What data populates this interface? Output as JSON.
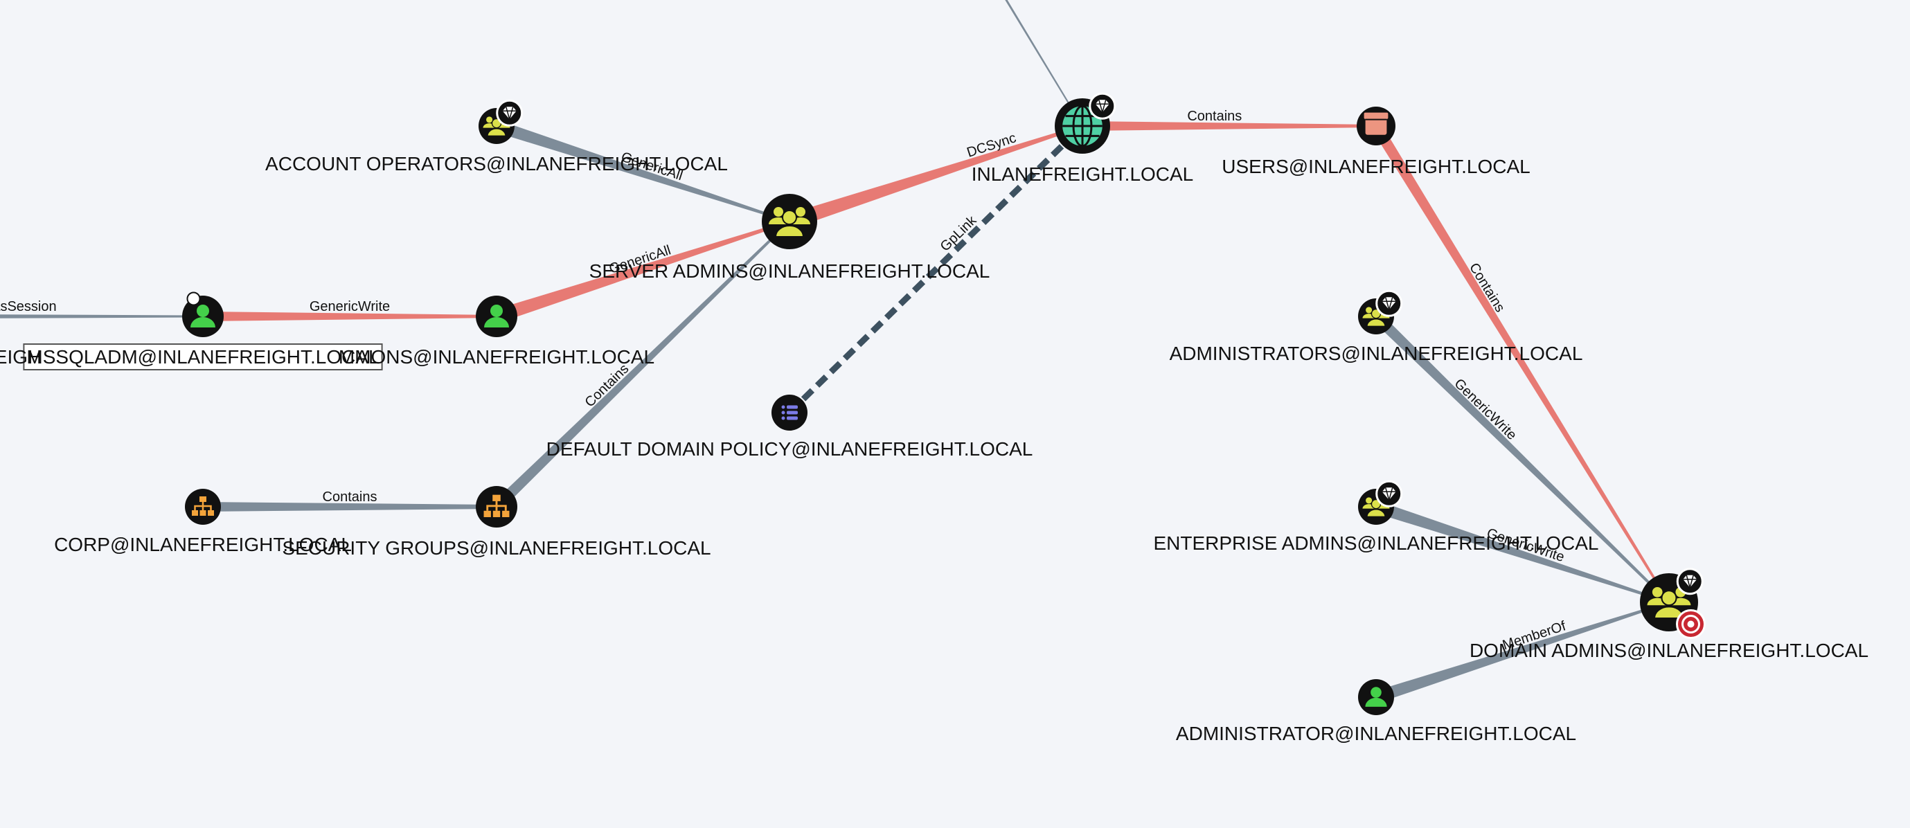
{
  "colors": {
    "background": "#f3f5f9",
    "edge_default": "#7e8c99",
    "edge_highlight": "#e77a74",
    "edge_gplink": "#3d5160",
    "node_ring": "#111111",
    "group_fill": "#dbe04a",
    "user_fill": "#44d04a",
    "domain_fill": "#4fd0a4",
    "ou_fill": "#f4a43b",
    "container_fill": "#ec9580",
    "gpo_fill": "#7b7be6",
    "target_fill": "#c82832"
  },
  "nodes": [
    {
      "id": "account_operators",
      "type": "group",
      "label": "ACCOUNT OPERATORS@INLANEFREIGHT.LOCAL",
      "icon": "group-icon",
      "badge": "tier-zero-gem-icon"
    },
    {
      "id": "server_admins",
      "type": "group",
      "label": "SERVER ADMINS@INLANEFREIGHT.LOCAL",
      "icon": "group-icon"
    },
    {
      "id": "inlanefreight_local",
      "type": "domain",
      "label": "INLANEFREIGHT.LOCAL",
      "icon": "globe-icon",
      "badge": "tier-zero-gem-icon"
    },
    {
      "id": "users",
      "type": "container",
      "label": "USERS@INLANEFREIGHT.LOCAL",
      "icon": "container-box-icon"
    },
    {
      "id": "mssqladm",
      "type": "user",
      "label": "MSSQLADM@INLANEFREIGHT.LOCAL",
      "icon": "user-icon",
      "selected": true
    },
    {
      "id": "left_partial",
      "type": "user",
      "label": "EIGH",
      "icon": "user-icon"
    },
    {
      "id": "commons_user",
      "type": "user",
      "label": "MMONS@INLANEFREIGHT.LOCAL",
      "icon": "user-icon"
    },
    {
      "id": "default_domain_policy",
      "type": "gpo",
      "label": "DEFAULT DOMAIN POLICY@INLANEFREIGHT.LOCAL",
      "icon": "gpo-list-icon"
    },
    {
      "id": "corp",
      "type": "ou",
      "label": "CORP@INLANEFREIGHT.LOCAL",
      "icon": "ou-tree-icon"
    },
    {
      "id": "security_groups",
      "type": "ou",
      "label": "SECURITY GROUPS@INLANEFREIGHT.LOCAL",
      "icon": "ou-tree-icon"
    },
    {
      "id": "administrators",
      "type": "group",
      "label": "ADMINISTRATORS@INLANEFREIGHT.LOCAL",
      "icon": "group-icon",
      "badge": "tier-zero-gem-icon"
    },
    {
      "id": "enterprise_admins",
      "type": "group",
      "label": "ENTERPRISE ADMINS@INLANEFREIGHT.LOCAL",
      "icon": "group-icon",
      "badge": "tier-zero-gem-icon"
    },
    {
      "id": "domain_admins",
      "type": "group",
      "label": "DOMAIN ADMINS@INLANEFREIGHT.LOCAL",
      "icon": "group-icon",
      "badge": "tier-zero-gem-icon",
      "target": true
    },
    {
      "id": "administrator",
      "type": "user",
      "label": "ADMINISTRATOR@INLANEFREIGHT.LOCAL",
      "icon": "user-icon"
    }
  ],
  "edges": [
    {
      "id": "e1",
      "source": "account_operators",
      "target": "server_admins",
      "label": "GenericAll",
      "style": "default"
    },
    {
      "id": "e2",
      "source": "server_admins",
      "target": "inlanefreight_local",
      "label": "DCSync",
      "style": "highlight"
    },
    {
      "id": "e3",
      "source": "inlanefreight_local",
      "target": "users",
      "label": "Contains",
      "style": "highlight"
    },
    {
      "id": "e4",
      "source": "users",
      "target": "domain_admins",
      "label": "Contains",
      "style": "highlight"
    },
    {
      "id": "e5",
      "source": "commons_user",
      "target": "server_admins",
      "label": "GenericAll",
      "style": "highlight"
    },
    {
      "id": "e6",
      "source": "mssqladm",
      "target": "commons_user",
      "label": "GenericWrite",
      "style": "highlight"
    },
    {
      "id": "e7",
      "source": "left_partial",
      "target": "mssqladm",
      "label": "HasSession",
      "style": "default"
    },
    {
      "id": "e8",
      "source": "security_groups",
      "target": "server_admins",
      "label": "Contains",
      "style": "default"
    },
    {
      "id": "e9",
      "source": "corp",
      "target": "security_groups",
      "label": "Contains",
      "style": "default"
    },
    {
      "id": "e10",
      "source": "default_domain_policy",
      "target": "inlanefreight_local",
      "label": "GpLink",
      "style": "gplink"
    },
    {
      "id": "e11",
      "source": "administrators",
      "target": "domain_admins",
      "label": "GenericWrite",
      "style": "default"
    },
    {
      "id": "e12",
      "source": "enterprise_admins",
      "target": "domain_admins",
      "label": "GenericWrite",
      "style": "default"
    },
    {
      "id": "e13",
      "source": "administrator",
      "target": "domain_admins",
      "label": "MemberOf",
      "style": "default"
    },
    {
      "id": "e14",
      "source": "offscreen",
      "target": "inlanefreight_local",
      "label": "",
      "style": "default"
    }
  ]
}
